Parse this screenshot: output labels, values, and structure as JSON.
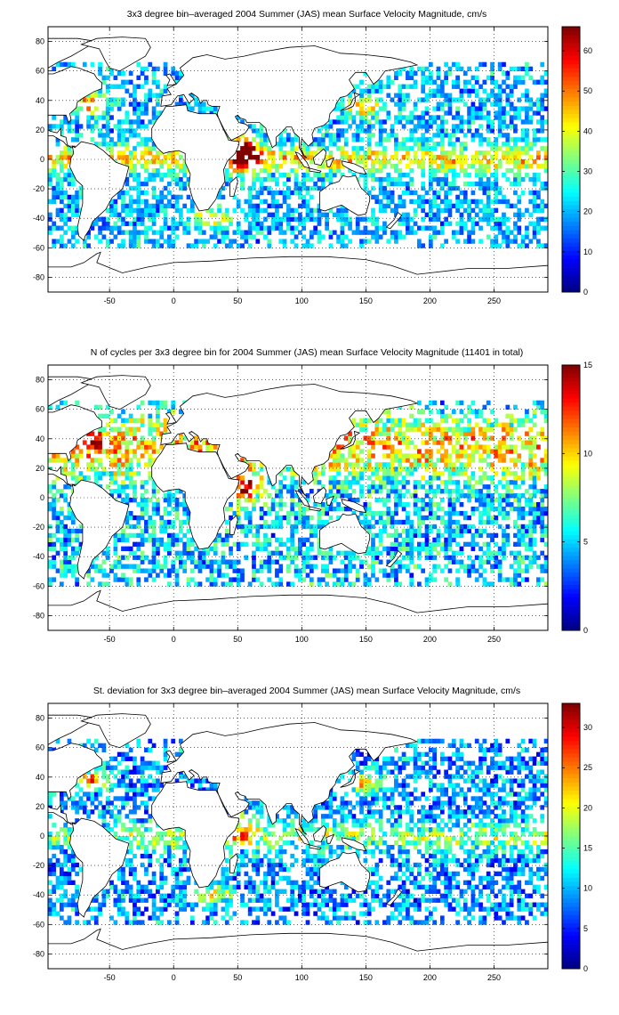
{
  "figure": {
    "panels": [
      {
        "id": "mean-velocity",
        "title": "3x3 degree bin–averaged 2004 Summer (JAS) mean Surface Velocity Magnitude, cm/s"
      },
      {
        "id": "n-cycles",
        "title": "N of cycles per 3x3 degree bin for 2004 Summer (JAS) mean Surface Velocity Magnitude (11401 in total)"
      },
      {
        "id": "std-velocity",
        "title": "St. deviation for 3x3 degree bin–averaged 2004 Summer (JAS) mean Surface Velocity Magnitude, cm/s"
      }
    ]
  },
  "chart_data": [
    {
      "type": "heatmap",
      "title": "3x3 degree bin–averaged 2004 Summer (JAS) mean Surface Velocity Magnitude, cm/s",
      "xlabel": "",
      "ylabel": "",
      "xlim": [
        -98,
        292
      ],
      "ylim": [
        -90,
        90
      ],
      "xticks": [
        -50,
        0,
        50,
        100,
        150,
        200,
        250
      ],
      "yticks": [
        -80,
        -60,
        -40,
        -20,
        0,
        20,
        40,
        60,
        80
      ],
      "grid": true,
      "colormap": "jet",
      "colorbar": {
        "min": 0,
        "max": 66,
        "ticks": [
          0,
          10,
          20,
          30,
          40,
          50,
          60
        ]
      },
      "bin_size_deg": 3,
      "values": "3x3 degree bins over ocean regions; highest values along the equator (Somali Current near 50E) and in western boundary currents"
    },
    {
      "type": "heatmap",
      "title": "N of cycles per 3x3 degree bin for 2004 Summer (JAS) mean Surface Velocity Magnitude (11401 in total)",
      "xlabel": "",
      "ylabel": "",
      "xlim": [
        -98,
        292
      ],
      "ylim": [
        -90,
        90
      ],
      "xticks": [
        -50,
        0,
        50,
        100,
        150,
        200,
        250
      ],
      "yticks": [
        -80,
        -60,
        -40,
        -20,
        0,
        20,
        40,
        60,
        80
      ],
      "grid": true,
      "colormap": "jet",
      "colorbar": {
        "min": 0,
        "max": 15,
        "ticks": [
          0,
          5,
          10,
          15
        ]
      },
      "bin_size_deg": 3,
      "total": 11401,
      "values": "3x3 degree bins; highest counts in the North Atlantic, northern Indian Ocean and northwest Pacific"
    },
    {
      "type": "heatmap",
      "title": "St. deviation for 3x3 degree bin–averaged 2004 Summer (JAS) mean Surface Velocity Magnitude, cm/s",
      "xlabel": "",
      "ylabel": "",
      "xlim": [
        -98,
        292
      ],
      "ylim": [
        -90,
        90
      ],
      "xticks": [
        -50,
        0,
        50,
        100,
        150,
        200,
        250
      ],
      "yticks": [
        -80,
        -60,
        -40,
        -20,
        0,
        20,
        40,
        60,
        80
      ],
      "grid": true,
      "colormap": "jet",
      "colorbar": {
        "min": 0,
        "max": 33,
        "ticks": [
          0,
          5,
          10,
          15,
          20,
          25,
          30
        ]
      },
      "bin_size_deg": 3,
      "values": "3x3 degree bins; largest values in western boundary currents and the Agulhas region"
    }
  ],
  "colors": {
    "coastline": "#000000",
    "grid": "#000000",
    "background": "#ffffff"
  }
}
